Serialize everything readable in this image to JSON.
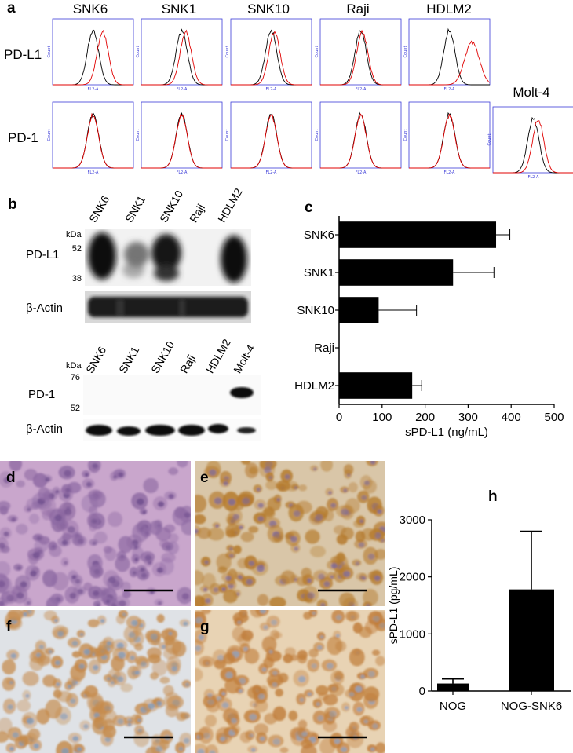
{
  "panel_a": {
    "label": "a",
    "columns": [
      "SNK6",
      "SNK1",
      "SNK10",
      "Raji",
      "HDLM2"
    ],
    "extra_column": "Molt-4",
    "rows": [
      "PD-L1",
      "PD-1"
    ],
    "axis_y_label": "Count",
    "axis_x_label": "FL2-A",
    "colors": {
      "control": "#000000",
      "stain": "#e00000",
      "frame": "#3b3bd8"
    },
    "stain_shift_pdl1": [
      0.12,
      0.05,
      0.04,
      0.02,
      0.28
    ],
    "stain_shift_pd1": [
      0.0,
      0.0,
      0.0,
      0.0,
      0.0
    ],
    "stain_shift_molt4": 0.06
  },
  "panel_b": {
    "label": "b",
    "top_lanes": [
      "SNK6",
      "SNK1",
      "SNK10",
      "Raji",
      "HDLM2"
    ],
    "top_kda": "kDa",
    "top_markers": [
      "52",
      "38"
    ],
    "top_band_label": "PD-L1",
    "top_actin_label": "β-Actin",
    "bottom_lanes": [
      "SNK6",
      "SNK1",
      "SNK10",
      "Raji",
      "HDLM2",
      "Molt-4"
    ],
    "bottom_kda": "kDa",
    "bottom_markers": [
      "76",
      "52"
    ],
    "bottom_band_label": "PD-1",
    "bottom_actin_label": "β-Actin"
  },
  "panel_c": {
    "label": "c",
    "chart_data": {
      "type": "bar",
      "orientation": "horizontal",
      "categories": [
        "SNK6",
        "SNK1",
        "SNK10",
        "Raji",
        "HDLM2"
      ],
      "values": [
        365,
        265,
        92,
        0,
        170
      ],
      "errors": [
        32,
        95,
        88,
        0,
        22
      ],
      "xlabel": "sPD-L1 (ng/mL)",
      "xlim": [
        0,
        500
      ],
      "xticks": [
        "0",
        "100",
        "200",
        "300",
        "400",
        "500"
      ]
    }
  },
  "panel_h": {
    "label": "h",
    "chart_data": {
      "type": "bar",
      "categories": [
        "NOG",
        "NOG-SNK6"
      ],
      "values": [
        130,
        1780
      ],
      "errors": [
        80,
        1020
      ],
      "ylabel": "sPD-L1 (pg/mL)",
      "ylim": [
        0,
        3000
      ],
      "yticks": [
        "0",
        "1000",
        "2000",
        "3000"
      ]
    }
  },
  "panels_images": {
    "labels": [
      "d",
      "e",
      "f",
      "g"
    ],
    "colors": {
      "d_bg": "#c9a6cc",
      "d_cell": "#8e6aa3",
      "d_nuc": "#6b4a8a",
      "e_bg": "#d9c6a8",
      "e_cell": "#b57a2c",
      "e_nuc": "#7c6aa0",
      "f_bg": "#dfe2e6",
      "f_cell": "#c58a4a",
      "f_nuc": "#7d9cc0",
      "g_bg": "#e8d3b4",
      "g_cell": "#c07d3a",
      "g_nuc": "#8fa3c3"
    }
  }
}
